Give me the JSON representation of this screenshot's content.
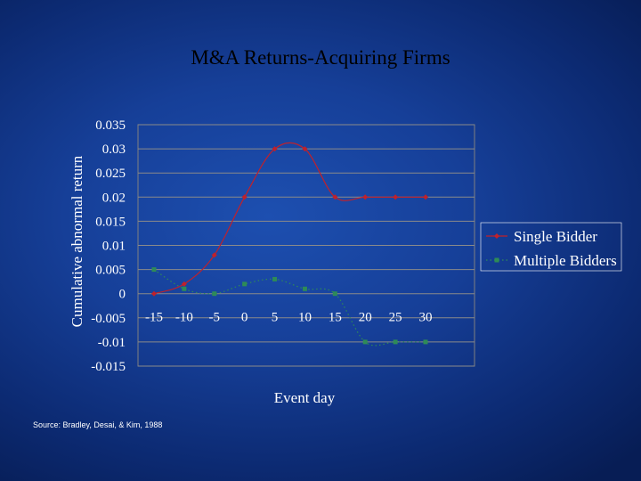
{
  "slide": {
    "title": "M&A Returns-Acquiring Firms",
    "source": "Source: Bradley, Desai, & Kim, 1988"
  },
  "chart_data": {
    "type": "line",
    "xlabel": "Event day",
    "ylabel": "Cumulative abnormal return",
    "categories": [
      "-15",
      "-10",
      "-5",
      "0",
      "5",
      "10",
      "15",
      "20",
      "25",
      "30"
    ],
    "ylim": [
      -0.015,
      0.035
    ],
    "yticks": [
      "0.035",
      "0.03",
      "0.025",
      "0.02",
      "0.015",
      "0.01",
      "0.005",
      "0",
      "-0.005",
      "-0.01",
      "-0.015"
    ],
    "grid": "horizontal",
    "legend_position": "right",
    "series": [
      {
        "name": "Single Bidder",
        "color": "#c0212b",
        "marker": "diamond",
        "line": "smooth-solid",
        "values": [
          0,
          0.002,
          0.008,
          0.02,
          0.03,
          0.03,
          0.02,
          0.02,
          0.02,
          0.02
        ]
      },
      {
        "name": "Multiple Bidders",
        "color": "#2e8b57",
        "marker": "square",
        "line": "smooth-dotted",
        "values": [
          0.005,
          0.001,
          0,
          0.002,
          0.003,
          0.001,
          0,
          -0.01,
          -0.01,
          -0.01
        ]
      }
    ]
  }
}
